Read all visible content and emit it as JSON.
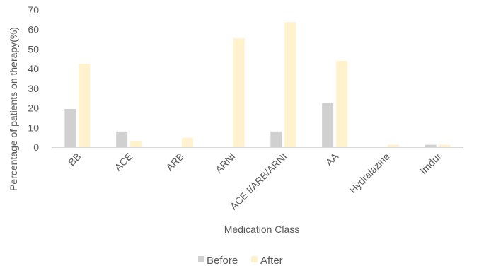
{
  "chart_data": {
    "type": "bar",
    "title": "",
    "xlabel": "Medication Class",
    "ylabel": "Percentage of patients on therapy(%)",
    "categories": [
      "BB",
      "ACE",
      "ARB",
      "ARNI",
      "ACE I/ARB/ARNI",
      "AA",
      "Hydralazine",
      "Imdur"
    ],
    "ylim": [
      0,
      70
    ],
    "yticks": [
      0,
      10,
      20,
      30,
      40,
      50,
      60,
      70
    ],
    "grid": false,
    "legend_position": "bottom",
    "series": [
      {
        "name": "Before",
        "color": "#d0d0d0",
        "values": [
          19.5,
          8,
          0,
          0,
          8,
          22.5,
          0,
          1.2
        ]
      },
      {
        "name": "After",
        "color": "#fff2cc",
        "values": [
          42.5,
          3,
          4.8,
          55.5,
          63.8,
          44,
          1.2,
          1.2
        ]
      }
    ]
  }
}
